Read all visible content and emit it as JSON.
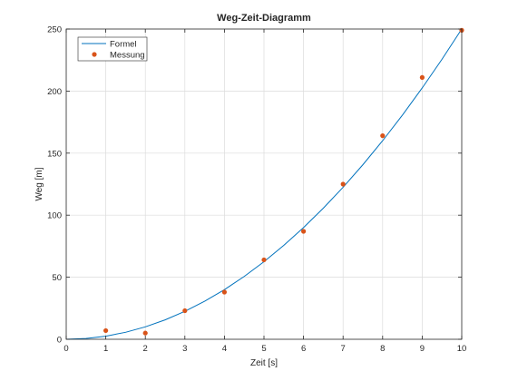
{
  "chart_data": {
    "type": "line",
    "title": "Weg-Zeit-Diagramm",
    "xlabel": "Zeit [s]",
    "ylabel": "Weg [m]",
    "xlim": [
      0,
      10
    ],
    "ylim": [
      0,
      250
    ],
    "x_ticks": [
      0,
      1,
      2,
      3,
      4,
      5,
      6,
      7,
      8,
      9,
      10
    ],
    "y_ticks": [
      0,
      50,
      100,
      150,
      200,
      250
    ],
    "grid": true,
    "legend_position": "top-left",
    "series": [
      {
        "name": "Formel",
        "style": "line",
        "color": "#0072BD",
        "formula": "s = 2.5 * t^2",
        "x": [
          0,
          0.5,
          1,
          1.5,
          2,
          2.5,
          3,
          3.5,
          4,
          4.5,
          5,
          5.5,
          6,
          6.5,
          7,
          7.5,
          8,
          8.5,
          9,
          9.5,
          10
        ],
        "y": [
          0,
          0.625,
          2.5,
          5.625,
          10,
          15.625,
          22.5,
          30.625,
          40,
          50.625,
          62.5,
          75.625,
          90,
          105.625,
          122.5,
          140.625,
          160,
          180.625,
          202.5,
          225.625,
          250
        ]
      },
      {
        "name": "Messung",
        "style": "marker",
        "color": "#D95319",
        "x": [
          1,
          2,
          3,
          4,
          5,
          6,
          7,
          8,
          9,
          10
        ],
        "y": [
          7,
          5,
          23,
          38,
          64,
          87,
          125,
          164,
          211,
          249
        ]
      }
    ]
  }
}
